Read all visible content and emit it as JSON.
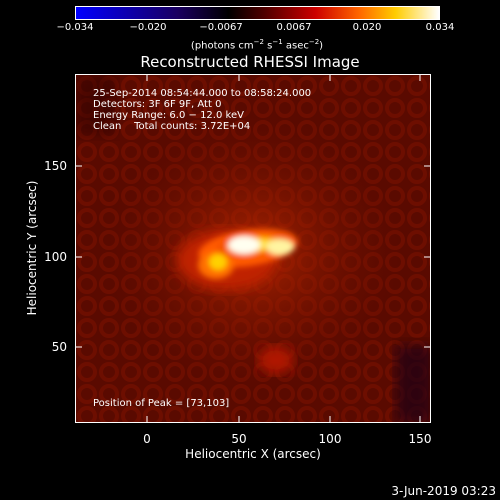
{
  "colorbar": {
    "ticks": [
      "−0.034",
      "−0.020",
      "−0.0067",
      "0.0067",
      "0.020",
      "0.034"
    ],
    "units_main": "(photons cm",
    "units_exp1": "−2",
    "units_mid": " s",
    "units_exp2": "−1",
    "units_mid2": " asec",
    "units_exp3": "−2",
    "units_end": ")",
    "colors": [
      "#0000ff",
      "#000000",
      "#cc0000",
      "#ff8800",
      "#ffffff"
    ]
  },
  "title": "Reconstructed RHESSI Image",
  "info": {
    "time_range": "25-Sep-2014 08:54:44.000 to 08:58:24.000",
    "detectors": "Detectors: 3F 6F 9F, Att 0",
    "energy": "Energy Range: 6.0 − 12.0 keV",
    "clean": "Clean    Total counts: 3.72E+04",
    "peak": "Position of Peak = [73,103]"
  },
  "axes": {
    "xlabel": "Heliocentric X (arcsec)",
    "ylabel": "Heliocentric Y (arcsec)",
    "xticks": [
      "0",
      "50",
      "100",
      "150"
    ],
    "yticks": [
      "50",
      "100",
      "150"
    ]
  },
  "footer": {
    "date": "3-Jun-2019 03:23"
  }
}
